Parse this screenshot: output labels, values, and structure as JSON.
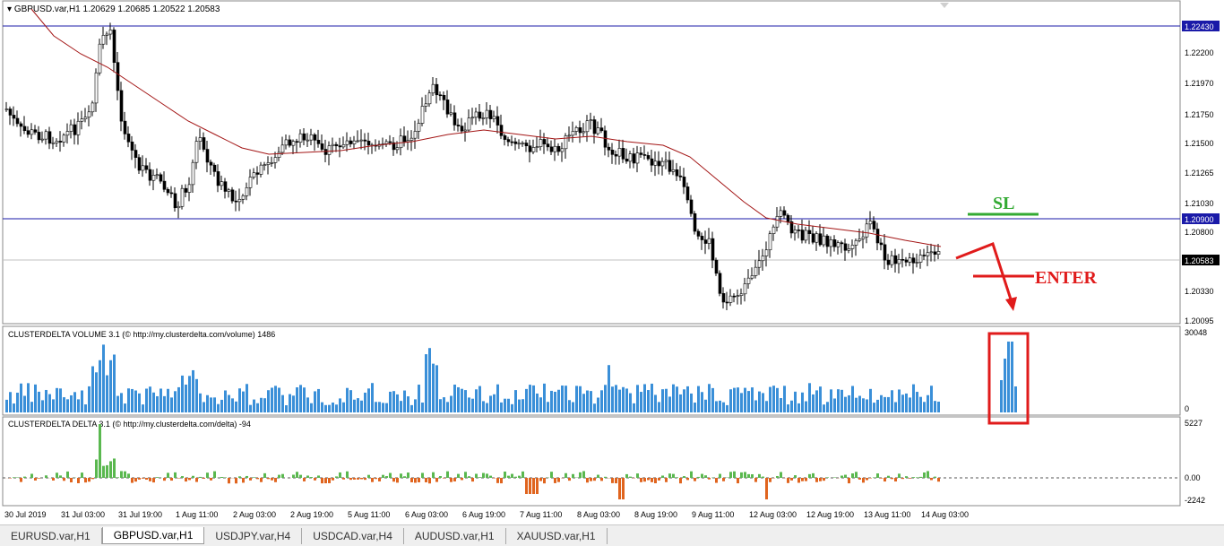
{
  "main_chart": {
    "header": "GBPUSD.var,H1  1.20629 1.20685 1.20522 1.20583",
    "price_levels": [
      "1.22430",
      "1.22200",
      "1.21970",
      "1.21750",
      "1.21500",
      "1.21265",
      "1.21030",
      "1.20800",
      "1.20330",
      "1.20095"
    ],
    "hline_tags": {
      "top": "1.22430",
      "sl_line": "1.20900",
      "current": "1.20583"
    },
    "annotations": {
      "sl": "SL",
      "enter": "ENTER"
    }
  },
  "volume_panel": {
    "header": "CLUSTERDELTA VOLUME 3.1 (© http://my.clusterdelta.com/volume) 1486",
    "scale_max": "30048",
    "scale_min": "0"
  },
  "delta_panel": {
    "header": "CLUSTERDELTA DELTA 3.1 (© http://my.clusterdelta.com/delta) -94",
    "scale_max": "5227",
    "scale_zero": "0.00",
    "scale_min": "-2242"
  },
  "time_axis": [
    "30 Jul 2019",
    "31 Jul 03:00",
    "31 Jul 19:00",
    "1 Aug 11:00",
    "2 Aug 03:00",
    "2 Aug 19:00",
    "5 Aug 11:00",
    "6 Aug 03:00",
    "6 Aug 19:00",
    "7 Aug 11:00",
    "8 Aug 03:00",
    "8 Aug 19:00",
    "9 Aug 11:00",
    "12 Aug 03:00",
    "12 Aug 19:00",
    "13 Aug 11:00",
    "14 Aug 03:00"
  ],
  "tabs": [
    "EURUSD.var,H1",
    "GBPUSD.var,H1",
    "USDJPY.var,H4",
    "USDCAD.var,H4",
    "AUDUSD.var,H1",
    "XAUUSD.var,H1"
  ],
  "active_tab": "GBPUSD.var,H1",
  "colors": {
    "bull_delta": "#5ab84f",
    "bear_delta": "#e0641e",
    "volume": "#3a8fd8",
    "ma": "#a31515",
    "hline": "#1a1aa8",
    "annotation_red": "#e01b1b",
    "sl_green": "#33aa33"
  }
}
